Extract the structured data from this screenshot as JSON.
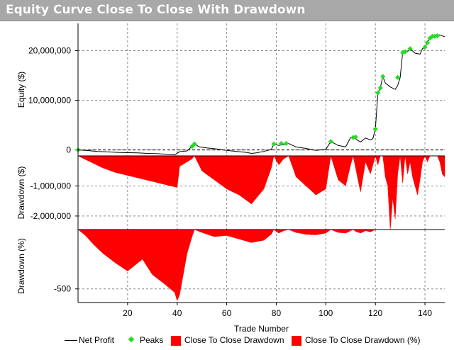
{
  "window": {
    "title": "Equity Curve Close To Close With Drawdown"
  },
  "colors": {
    "title_bar": "#a8a8a8",
    "net_profit": "#000000",
    "peaks": "#22dd22",
    "drawdown": "#ff0000",
    "grid": "#888888"
  },
  "legend": {
    "net_profit": "Net Profit",
    "peaks": "Peaks",
    "dd_dollar": "Close To Close Drawdown",
    "dd_pct": "Close To Close Drawdown (%)"
  },
  "chart_data": {
    "type": "line",
    "xlabel": "Trade Number",
    "xlim": [
      0,
      148
    ],
    "x_ticks": [
      20,
      40,
      60,
      80,
      100,
      120,
      140
    ],
    "grid": true,
    "legend_position": "bottom",
    "panels": [
      {
        "name": "equity",
        "ylabel": "Equity ($)",
        "ylim": [
          -1200000,
          25500000
        ],
        "y_ticks": [
          0,
          10000000,
          20000000
        ],
        "y_tick_labels": [
          "0",
          "10,000,000",
          "20,000,000"
        ],
        "series": [
          {
            "name": "Net Profit",
            "type": "line",
            "x": [
              0,
              3,
              8,
              12,
              16,
              20,
              24,
              28,
              32,
              36,
              39,
              41,
              44,
              46,
              47,
              49,
              52,
              56,
              60,
              64,
              68,
              70,
              72,
              75,
              78,
              79,
              81,
              83,
              85,
              88,
              92,
              96,
              100,
              102,
              105,
              108,
              110,
              111,
              112,
              114,
              116,
              118,
              119,
              120,
              121,
              122,
              123,
              124,
              126,
              128,
              129,
              130,
              131,
              133,
              134,
              136,
              138,
              139,
              140,
              141,
              142,
              143,
              144,
              145,
              146,
              148
            ],
            "values": [
              0,
              -100000,
              -300000,
              -400000,
              -500000,
              -550000,
              -600000,
              -700000,
              -750000,
              -900000,
              -1000000,
              -350000,
              -200000,
              700000,
              1200000,
              600000,
              400000,
              200000,
              -100000,
              -300000,
              -500000,
              -700000,
              -600000,
              -300000,
              100000,
              1200000,
              900000,
              1100000,
              1300000,
              600000,
              300000,
              -100000,
              100000,
              1700000,
              900000,
              600000,
              2500000,
              2600000,
              2200000,
              1600000,
              2400000,
              2000000,
              2300000,
              4200000,
              11500000,
              12500000,
              14800000,
              13500000,
              12700000,
              12200000,
              13000000,
              14600000,
              19600000,
              19800000,
              20400000,
              19500000,
              19300000,
              20400000,
              20700000,
              21600000,
              22500000,
              22900000,
              22600000,
              23000000,
              23200000,
              22800000
            ]
          },
          {
            "name": "Peaks",
            "type": "scatter",
            "x": [
              0,
              46,
              47,
              79,
              82,
              84,
              102,
              111,
              112,
              120,
              121,
              122,
              123,
              129,
              131,
              132,
              134,
              140,
              141,
              142,
              143,
              144,
              145
            ],
            "values": [
              0,
              700000,
              1200000,
              1200000,
              1300000,
              1300000,
              1700000,
              2500000,
              2600000,
              4200000,
              11500000,
              12500000,
              14800000,
              14600000,
              19600000,
              19800000,
              20400000,
              20700000,
              21600000,
              22500000,
              22900000,
              22900000,
              23000000
            ]
          }
        ]
      },
      {
        "name": "drawdown_dollar",
        "ylabel": "Drawdown ($)",
        "ylim": [
          -2450000,
          0
        ],
        "y_ticks": [
          -1000000,
          -2000000
        ],
        "y_tick_labels": [
          "-1,000,000",
          "-2,000,000"
        ],
        "series": [
          {
            "name": "Close To Close Drawdown",
            "type": "area",
            "x": [
              0,
              5,
              10,
              15,
              20,
              25,
              30,
              35,
              40,
              41,
              44,
              46,
              47,
              50,
              55,
              60,
              65,
              70,
              72,
              75,
              78,
              79,
              81,
              83,
              85,
              88,
              92,
              96,
              100,
              102,
              105,
              108,
              110,
              111,
              112,
              114,
              116,
              118,
              119,
              120,
              121,
              122,
              123,
              124,
              125,
              126,
              127,
              128,
              129,
              130,
              131,
              132,
              133,
              134,
              135,
              136,
              137,
              138,
              139,
              140,
              141,
              142,
              143,
              144,
              145,
              146,
              147,
              148
            ],
            "values": [
              0,
              -200000,
              -400000,
              -550000,
              -650000,
              -750000,
              -850000,
              -950000,
              -1050000,
              -350000,
              -200000,
              -100000,
              0,
              -500000,
              -800000,
              -1100000,
              -1300000,
              -1600000,
              -1400000,
              -1100000,
              -400000,
              0,
              -300000,
              -100000,
              0,
              -700000,
              -1000000,
              -1300000,
              -1100000,
              0,
              -800000,
              -1000000,
              -300000,
              0,
              -400000,
              -1200000,
              -200000,
              -600000,
              -300000,
              0,
              -300000,
              0,
              0,
              -700000,
              -1000000,
              -2450000,
              -1400000,
              -2100000,
              -600000,
              0,
              -900000,
              0,
              -600000,
              -200000,
              -700000,
              -1000000,
              -1300000,
              -800000,
              -200000,
              0,
              -200000,
              0,
              0,
              0,
              0,
              -200000,
              -600000,
              -700000
            ]
          }
        ]
      },
      {
        "name": "drawdown_pct",
        "ylabel": "Drawdown (%)",
        "ylim": [
          -615,
          0
        ],
        "y_ticks": [
          -500
        ],
        "y_tick_labels": [
          "-500"
        ],
        "series": [
          {
            "name": "Close To Close Drawdown (%)",
            "type": "area",
            "x": [
              0,
              3,
              6,
              10,
              15,
              20,
              23,
              26,
              30,
              35,
              39,
              40,
              41,
              44,
              46,
              47,
              50,
              55,
              60,
              65,
              70,
              75,
              78,
              79,
              81,
              83,
              85,
              88,
              92,
              96,
              100,
              102,
              105,
              108,
              110,
              111,
              112,
              114,
              116,
              118,
              119,
              120,
              121,
              148
            ],
            "values": [
              0,
              -50,
              -120,
              -200,
              -280,
              -350,
              -300,
              -250,
              -380,
              -460,
              -530,
              -600,
              -550,
              -200,
              -60,
              0,
              -25,
              -60,
              -50,
              -80,
              -110,
              -90,
              -40,
              0,
              -30,
              -10,
              0,
              -25,
              -40,
              -45,
              -30,
              0,
              -25,
              -30,
              -10,
              0,
              -15,
              -30,
              -10,
              -20,
              -10,
              0,
              0,
              0
            ]
          }
        ]
      }
    ]
  }
}
